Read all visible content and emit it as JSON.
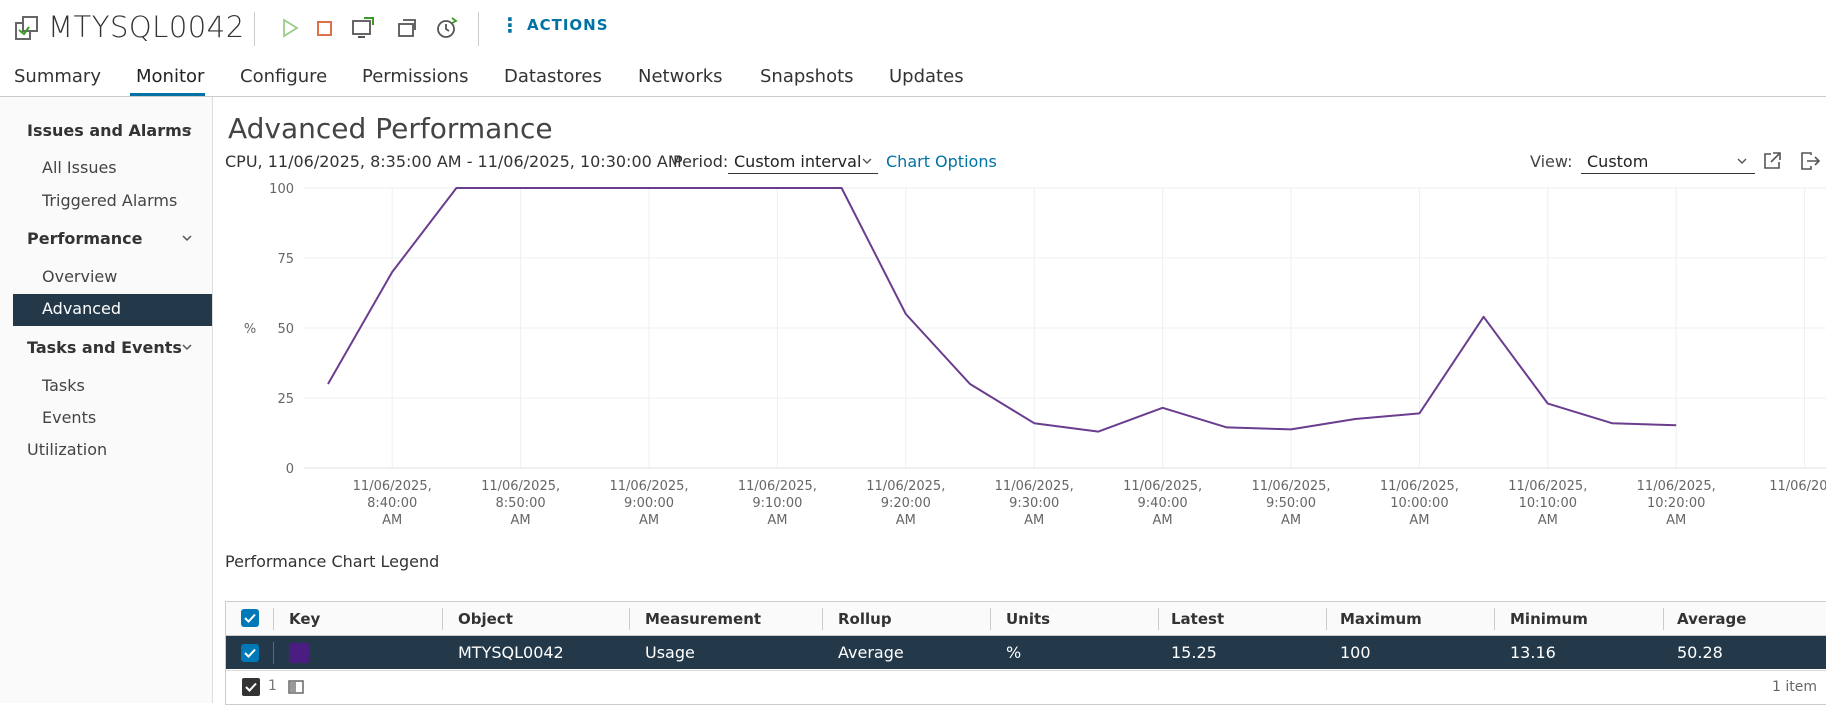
{
  "header": {
    "vm_name": "MTYSQL0042",
    "actions_label": "ACTIONS"
  },
  "tabs": [
    "Summary",
    "Monitor",
    "Configure",
    "Permissions",
    "Datastores",
    "Networks",
    "Snapshots",
    "Updates"
  ],
  "active_tab": "Monitor",
  "sidebar": {
    "groups": [
      {
        "label": "Issues and Alarms",
        "items": [
          "All Issues",
          "Triggered Alarms"
        ]
      },
      {
        "label": "Performance",
        "items": [
          "Overview",
          "Advanced"
        ]
      },
      {
        "label": "Tasks and Events",
        "items": [
          "Tasks",
          "Events"
        ]
      }
    ],
    "utilization": "Utilization",
    "selected": "Advanced"
  },
  "main": {
    "title": "Advanced Performance",
    "subtitle": "CPU, 11/06/2025, 8:35:00 AM - 11/06/2025, 10:30:00 AM",
    "period_label": "Period:",
    "period_value": "Custom interval",
    "chart_options": "Chart Options",
    "view_label": "View:",
    "view_value": "Custom"
  },
  "chart_data": {
    "type": "line",
    "ylabel": "%",
    "ylim": [
      0,
      100
    ],
    "yticks": [
      0,
      25,
      50,
      75,
      100
    ],
    "xticks": [
      [
        "11/06/2025,",
        "8:40:00",
        "AM"
      ],
      [
        "11/06/2025,",
        "8:50:00",
        "AM"
      ],
      [
        "11/06/2025,",
        "9:00:00",
        "AM"
      ],
      [
        "11/06/2025,",
        "9:10:00",
        "AM"
      ],
      [
        "11/06/2025,",
        "9:20:00",
        "AM"
      ],
      [
        "11/06/2025,",
        "9:30:00",
        "AM"
      ],
      [
        "11/06/2025,",
        "9:40:00",
        "AM"
      ],
      [
        "11/06/2025,",
        "9:50:00",
        "AM"
      ],
      [
        "11/06/2025,",
        "10:00:00",
        "AM"
      ],
      [
        "11/06/2025,",
        "10:10:00",
        "AM"
      ],
      [
        "11/06/2025,",
        "10:20:00",
        "AM"
      ],
      [
        "11/06/20..."
      ]
    ],
    "x": [
      "8:35",
      "8:40",
      "8:45",
      "8:50",
      "8:55",
      "9:00",
      "9:05",
      "9:10",
      "9:15",
      "9:20",
      "9:25",
      "9:30",
      "9:35",
      "9:40",
      "9:45",
      "9:50",
      "9:55",
      "10:00",
      "10:05",
      "10:10",
      "10:15",
      "10:20"
    ],
    "series": [
      {
        "name": "MTYSQL0042",
        "color": "#6a3d8f",
        "values": [
          30,
          70,
          100,
          100,
          100,
          100,
          100,
          100,
          100,
          55,
          30,
          16,
          13,
          21.5,
          14.5,
          13.8,
          17.5,
          19.5,
          54,
          23,
          16,
          15.25
        ]
      }
    ]
  },
  "legend": {
    "title": "Performance Chart Legend",
    "columns": [
      "Key",
      "Object",
      "Measurement",
      "Rollup",
      "Units",
      "Latest",
      "Maximum",
      "Minimum",
      "Average"
    ],
    "row": {
      "color": "#4c1d80",
      "object": "MTYSQL0042",
      "measurement": "Usage",
      "rollup": "Average",
      "units": "%",
      "latest": "15.25",
      "maximum": "100",
      "minimum": "13.16",
      "average": "50.28"
    },
    "footer_count": "1",
    "footer_items": "1 item"
  }
}
